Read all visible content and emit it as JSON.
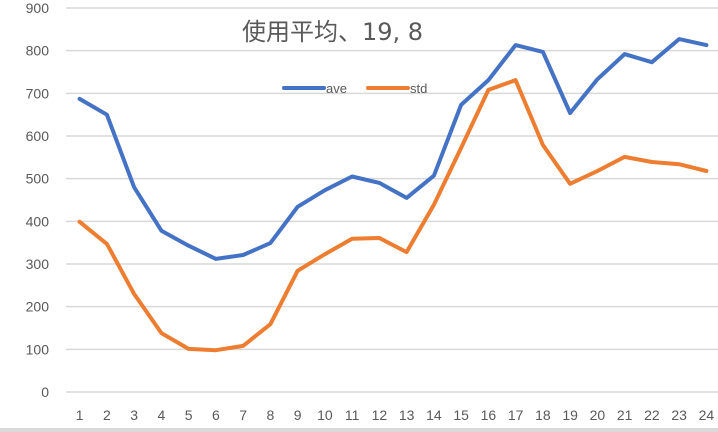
{
  "chart_data": {
    "type": "line",
    "title": "使用平均、19, 8",
    "xlabel": "",
    "ylabel": "",
    "categories": [
      "1",
      "2",
      "3",
      "4",
      "5",
      "6",
      "7",
      "8",
      "9",
      "10",
      "11",
      "12",
      "13",
      "14",
      "15",
      "16",
      "17",
      "18",
      "19",
      "20",
      "21",
      "22",
      "23",
      "24"
    ],
    "series": [
      {
        "name": "ave",
        "color": "#4472C4",
        "values": [
          687,
          650,
          480,
          378,
          343,
          312,
          321,
          349,
          434,
          473,
          505,
          490,
          455,
          507,
          673,
          731,
          813,
          797,
          654,
          733,
          792,
          773,
          827,
          813
        ]
      },
      {
        "name": "std",
        "color": "#ED7D31",
        "values": [
          399,
          347,
          230,
          138,
          101,
          98,
          108,
          159,
          284,
          323,
          359,
          361,
          328,
          439,
          572,
          708,
          731,
          579,
          488,
          518,
          551,
          539,
          534,
          518
        ]
      }
    ],
    "ylim": [
      0,
      900
    ],
    "yticks": [
      0,
      100,
      200,
      300,
      400,
      500,
      600,
      700,
      800,
      900
    ],
    "grid": true,
    "legend_position": "top-center"
  }
}
